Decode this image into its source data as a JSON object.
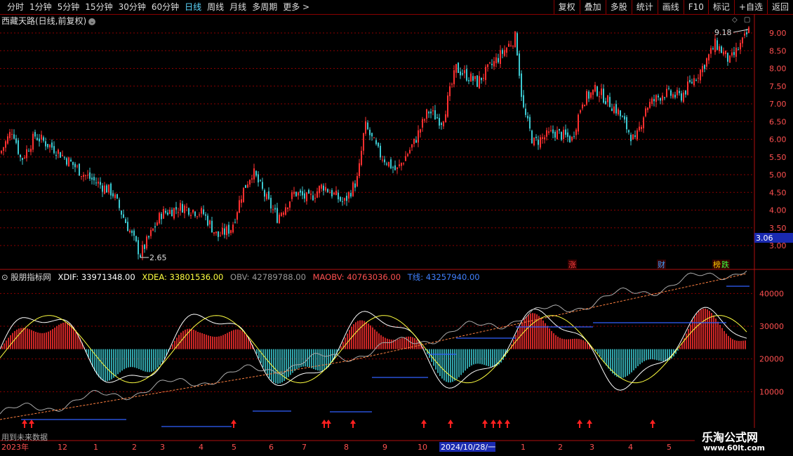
{
  "toolbar": {
    "periods": [
      "分时",
      "1分钟",
      "5分钟",
      "15分钟",
      "30分钟",
      "60分钟",
      "日线",
      "周线",
      "月线",
      "多周期",
      "更多 >"
    ],
    "active_index": 6,
    "right_buttons": [
      "复权",
      "叠加",
      "多股",
      "统计",
      "画线",
      "F10",
      "标记",
      "+自选",
      "返回"
    ]
  },
  "stock": {
    "title": "西藏天路(日线,前复权)",
    "high_label": "9.18",
    "low_label": "2.65",
    "current_price": "3.06",
    "price_ticks": [
      "9.00",
      "8.50",
      "8.00",
      "7.50",
      "7.00",
      "6.50",
      "6.00",
      "5.50",
      "5.00",
      "4.50",
      "4.00",
      "3.50",
      "3.00"
    ],
    "markers": [
      {
        "text": "涨",
        "color": "#ff4040"
      },
      {
        "text": "财",
        "color": "#40a0ff"
      },
      {
        "text": "榜",
        "color": "#ffcc00"
      },
      {
        "text": "跌",
        "color": "#40ff40"
      }
    ]
  },
  "indicator": {
    "name": "股朋指标网",
    "xdif_label": "XDIF:",
    "xdif": "33971348.00",
    "xdea_label": "XDEA:",
    "xdea": "33801536.00",
    "obv_label": "OBV:",
    "obv": "42789788.00",
    "maobv_label": "MAOBV:",
    "maobv": "40763036.00",
    "t_label": "T线:",
    "t": "43257940.00",
    "ticks": [
      "40000",
      "30000",
      "20000",
      "10000"
    ]
  },
  "timeline": {
    "labels": [
      "2023年",
      "12",
      "1",
      "2",
      "3",
      "4",
      "5",
      "6",
      "7",
      "8",
      "9",
      "10",
      "2024/10/28/一",
      "1",
      "2",
      "3",
      "4",
      "5"
    ],
    "future_text": "用到未来数据"
  },
  "watermark": {
    "line1": "乐淘公式网",
    "line2": "www.60lt.com"
  },
  "colors": {
    "up": "#ff3030",
    "down": "#3cc8d0",
    "grid": "#8b0000",
    "axis": "#b01010"
  }
}
